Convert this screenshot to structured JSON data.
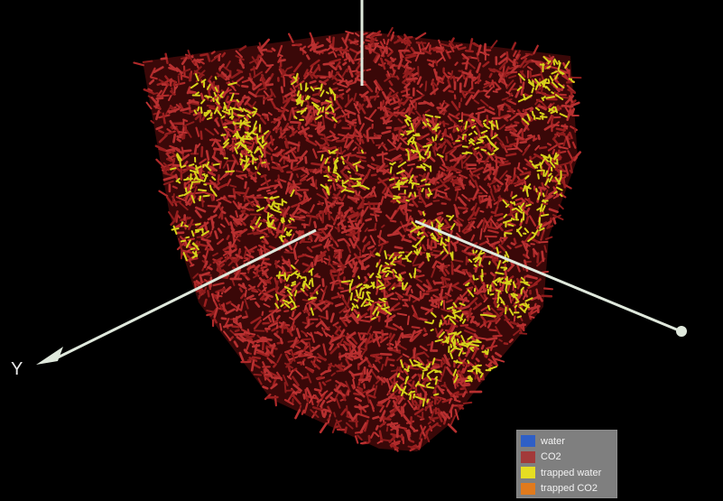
{
  "scene": {
    "description_free": true,
    "colors": {
      "background": "#000000",
      "co2": "#b12a2a",
      "trapped_water": "#d7d21a",
      "axis": "#dfe8dc"
    }
  },
  "axes": {
    "y_label": "Y"
  },
  "legend": {
    "items": [
      {
        "label": "water",
        "color": "#2f5fc6"
      },
      {
        "label": "CO2",
        "color": "#a33a3a"
      },
      {
        "label": "trapped water",
        "color": "#e6de22"
      },
      {
        "label": "trapped CO2",
        "color": "#e07a1c"
      }
    ]
  }
}
